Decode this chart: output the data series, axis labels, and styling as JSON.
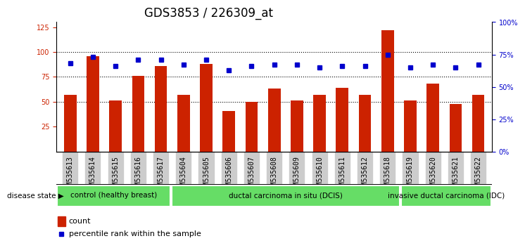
{
  "title": "GDS3853 / 226309_at",
  "samples": [
    "GSM535613",
    "GSM535614",
    "GSM535615",
    "GSM535616",
    "GSM535617",
    "GSM535604",
    "GSM535605",
    "GSM535606",
    "GSM535607",
    "GSM535608",
    "GSM535609",
    "GSM535610",
    "GSM535611",
    "GSM535612",
    "GSM535618",
    "GSM535619",
    "GSM535620",
    "GSM535621",
    "GSM535622"
  ],
  "counts": [
    57,
    96,
    51,
    76,
    86,
    57,
    88,
    41,
    50,
    63,
    51,
    57,
    64,
    57,
    122,
    51,
    68,
    48,
    57
  ],
  "percentiles": [
    68,
    73,
    66,
    71,
    71,
    67,
    71,
    63,
    66,
    67,
    67,
    65,
    66,
    66,
    75,
    65,
    67,
    65,
    67
  ],
  "groups": [
    {
      "label": "control (healthy breast)",
      "start": 0,
      "end": 5
    },
    {
      "label": "ductal carcinoma in situ (DCIS)",
      "start": 5,
      "end": 15
    },
    {
      "label": "invasive ductal carcinoma (IDC)",
      "start": 15,
      "end": 19
    }
  ],
  "bar_color": "#cc2200",
  "dot_color": "#0000cc",
  "group_color": "#66dd66",
  "ylim_left": [
    0,
    130
  ],
  "ylim_right": [
    0,
    100
  ],
  "yticks_left": [
    25,
    50,
    75,
    100,
    125
  ],
  "yticks_right": [
    0,
    25,
    50,
    75,
    100
  ],
  "ytick_labels_right": [
    "0%",
    "25%",
    "50%",
    "75%",
    "100%"
  ],
  "grid_values": [
    50,
    75,
    100
  ],
  "bg_color": "#ffffff",
  "title_fontsize": 12,
  "tick_fontsize": 7,
  "label_bg_color": "#cccccc",
  "label_fontsize": 8
}
